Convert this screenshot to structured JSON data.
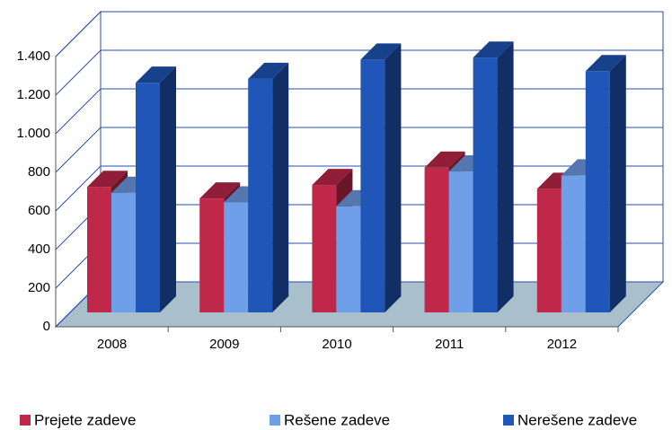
{
  "chart_data": {
    "type": "bar3d",
    "categories": [
      "2008",
      "2009",
      "2010",
      "2011",
      "2012"
    ],
    "series": [
      {
        "name": "Prejete zadeve",
        "color": "#c0284a",
        "values": [
          650,
          590,
          660,
          750,
          640
        ]
      },
      {
        "name": "Rešene zadeve",
        "color": "#6f9fe8",
        "values": [
          620,
          570,
          550,
          730,
          710
        ]
      },
      {
        "name": "Nerešene zadeve",
        "color": "#1f56b8",
        "values": [
          1190,
          1210,
          1310,
          1320,
          1250
        ]
      }
    ],
    "ylim": [
      0,
      1400
    ],
    "yticks": [
      0,
      200,
      400,
      600,
      800,
      {
        "value": 1000,
        "label": "1.000"
      },
      {
        "value": 1200,
        "label": "1.200"
      },
      {
        "value": 1400,
        "label": "1.400"
      }
    ],
    "grid": true,
    "legend": "bottom"
  }
}
